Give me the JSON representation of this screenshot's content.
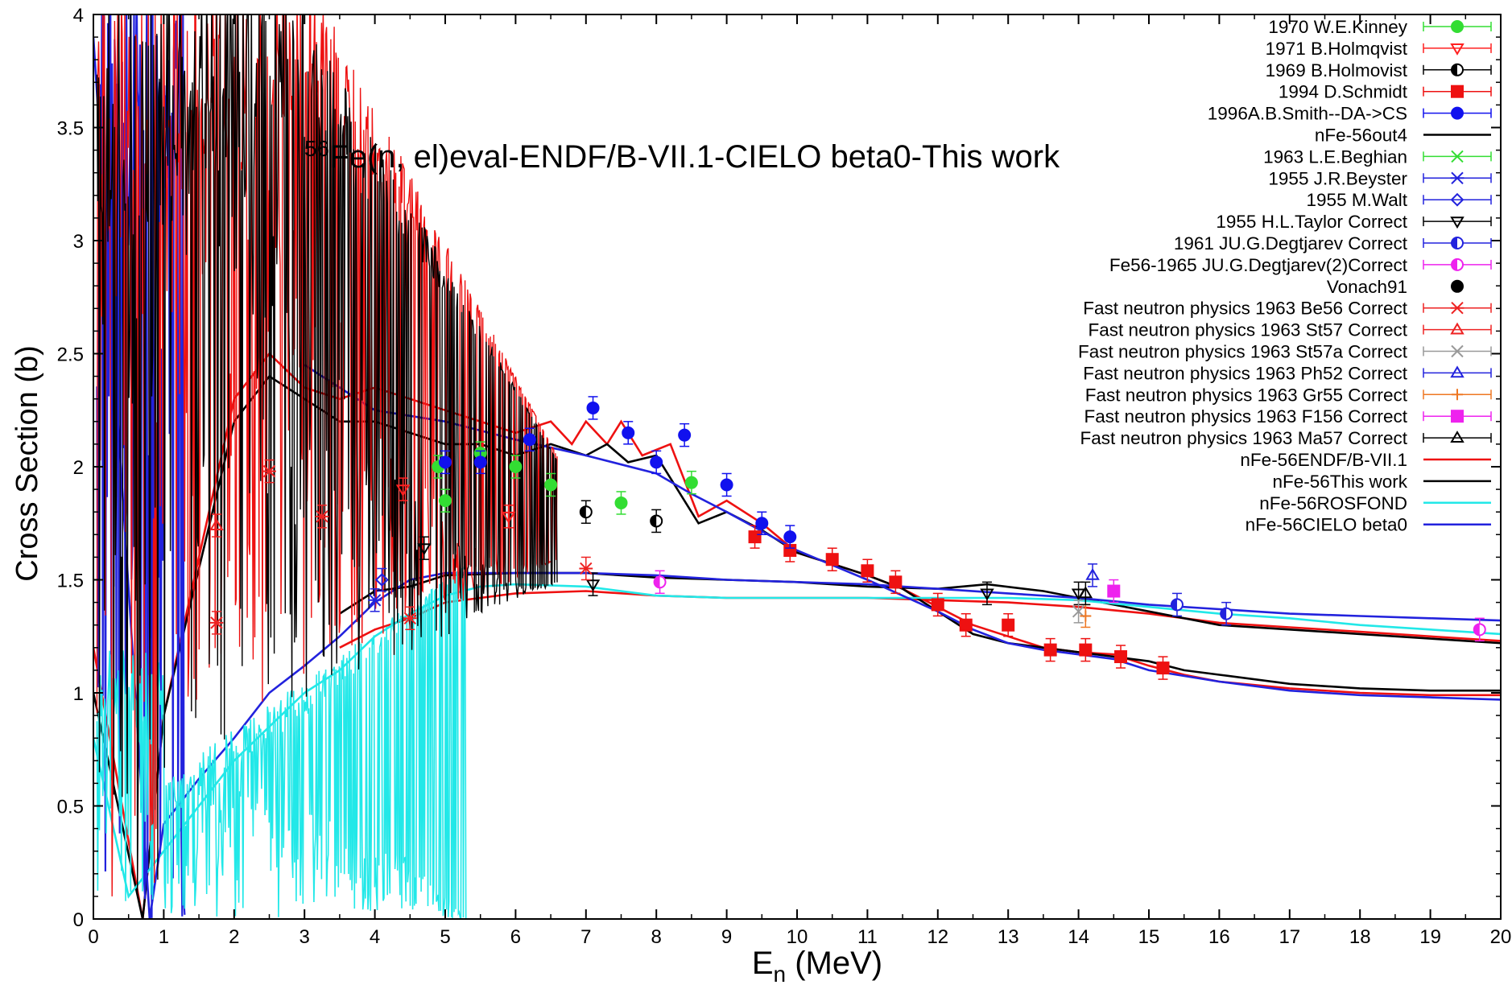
{
  "chart_data": {
    "type": "line",
    "title": "Fe(n, el)eval-ENDF/B-VII.1-CIELO beta0-This work",
    "title_superscript": "56",
    "xlabel": "E",
    "xlabel_subscript": "n",
    "xlabel_unit": " (MeV)",
    "ylabel": "Cross Section (b)",
    "xlim": [
      0,
      20
    ],
    "ylim": [
      0,
      4
    ],
    "x_ticks": [
      "0",
      "1",
      "2",
      "3",
      "4",
      "5",
      "6",
      "7",
      "8",
      "9",
      "10",
      "11",
      "12",
      "13",
      "14",
      "15",
      "16",
      "17",
      "18",
      "19",
      "20"
    ],
    "y_ticks": [
      "0",
      "0.5",
      "1",
      "1.5",
      "2",
      "2.5",
      "3",
      "3.5",
      "4"
    ],
    "grid": false,
    "legend_position": "top-right",
    "series": [
      {
        "name": "1970 W.E.Kinney",
        "kind": "points",
        "marker": "circle-filled",
        "color": "#33dd33",
        "points": [
          [
            4.9,
            2.0
          ],
          [
            5.0,
            1.85
          ],
          [
            5.5,
            2.06
          ],
          [
            6.0,
            2.0
          ],
          [
            6.5,
            1.92
          ],
          [
            7.5,
            1.84
          ],
          [
            8.5,
            1.93
          ]
        ]
      },
      {
        "name": "1971 B.Holmqvist",
        "kind": "points",
        "marker": "triangle-down-open",
        "color": "#ff2020",
        "points": [
          [
            5.9,
            1.78
          ],
          [
            4.4,
            1.9
          ]
        ]
      },
      {
        "name": "1969 B.Holmovist",
        "kind": "points",
        "marker": "circle-half",
        "color": "#000000",
        "points": [
          [
            7.0,
            1.8
          ],
          [
            8.0,
            1.76
          ]
        ]
      },
      {
        "name": "1994 D.Schmidt",
        "kind": "points",
        "marker": "square-filled",
        "color": "#ee1111",
        "points": [
          [
            9.4,
            1.69
          ],
          [
            9.9,
            1.63
          ],
          [
            10.5,
            1.59
          ],
          [
            11.0,
            1.54
          ],
          [
            11.4,
            1.49
          ],
          [
            12.0,
            1.39
          ],
          [
            12.4,
            1.3
          ],
          [
            13.0,
            1.3
          ],
          [
            13.6,
            1.19
          ],
          [
            14.1,
            1.19
          ],
          [
            14.6,
            1.16
          ],
          [
            15.2,
            1.11
          ]
        ]
      },
      {
        "name": "1996A.B.Smith--DA->CS",
        "kind": "points",
        "marker": "circle-filled",
        "color": "#1111ee",
        "points": [
          [
            5.0,
            2.02
          ],
          [
            5.5,
            2.02
          ],
          [
            6.2,
            2.12
          ],
          [
            7.1,
            2.26
          ],
          [
            7.6,
            2.15
          ],
          [
            8.0,
            2.02
          ],
          [
            8.4,
            2.14
          ],
          [
            9.0,
            1.92
          ],
          [
            9.5,
            1.75
          ],
          [
            9.9,
            1.69
          ]
        ]
      },
      {
        "name": "nFe-56out4",
        "kind": "line",
        "color": "#000000",
        "points": []
      },
      {
        "name": "1963 L.E.Beghian",
        "kind": "points",
        "marker": "x",
        "color": "#33dd33",
        "points": []
      },
      {
        "name": "1955 J.R.Beyster",
        "kind": "points",
        "marker": "star",
        "color": "#2222dd",
        "points": [
          [
            4.0,
            1.41
          ]
        ]
      },
      {
        "name": "1955 M.Walt",
        "kind": "points",
        "marker": "diamond-open",
        "color": "#2222dd",
        "points": [
          [
            4.1,
            1.5
          ]
        ]
      },
      {
        "name": "1955 H.L.Taylor Correct",
        "kind": "points",
        "marker": "triangle-down-open",
        "color": "#000000",
        "points": [
          [
            4.7,
            1.64
          ],
          [
            7.1,
            1.48
          ],
          [
            12.7,
            1.44
          ],
          [
            14.0,
            1.44
          ]
        ]
      },
      {
        "name": "1961 JU.G.Degtjarev Correct",
        "kind": "points",
        "marker": "circle-half",
        "color": "#2222dd",
        "points": [
          [
            15.4,
            1.39
          ],
          [
            16.1,
            1.35
          ]
        ]
      },
      {
        "name": "Fe56-1965 JU.G.Degtjarev(2)Correct",
        "kind": "points",
        "marker": "circle-half",
        "color": "#ee22ee",
        "points": [
          [
            8.05,
            1.49
          ],
          [
            19.7,
            1.28
          ]
        ]
      },
      {
        "name": "Vonach91",
        "kind": "points",
        "marker": "circle-filled",
        "color": "#000000",
        "points": []
      },
      {
        "name": "Fast neutron physics 1963 Be56 Correct",
        "kind": "points",
        "marker": "star",
        "color": "#ee2222",
        "points": [
          [
            1.75,
            1.31
          ],
          [
            2.5,
            1.98
          ],
          [
            3.25,
            1.78
          ],
          [
            7.0,
            1.55
          ],
          [
            4.5,
            1.33
          ]
        ]
      },
      {
        "name": "Fast neutron physics 1963 St57 Correct",
        "kind": "points",
        "marker": "triangle-up-open",
        "color": "#ee2222",
        "points": [
          [
            1.75,
            1.74
          ]
        ]
      },
      {
        "name": "Fast neutron physics 1963 St57a Correct",
        "kind": "points",
        "marker": "x",
        "color": "#999999",
        "points": [
          [
            14.0,
            1.36
          ]
        ]
      },
      {
        "name": "Fast neutron physics 1963 Ph52 Correct",
        "kind": "points",
        "marker": "triangle-up-open",
        "color": "#2222dd",
        "points": [
          [
            14.2,
            1.52
          ]
        ]
      },
      {
        "name": "Fast neutron physics 1963 Gr55 Correct",
        "kind": "points",
        "marker": "plus",
        "color": "#ee7722",
        "points": [
          [
            14.1,
            1.34
          ]
        ]
      },
      {
        "name": "Fast neutron physics 1963 F156 Correct",
        "kind": "points",
        "marker": "square-filled",
        "color": "#ee22ee",
        "points": [
          [
            14.5,
            1.45
          ]
        ]
      },
      {
        "name": "Fast neutron physics 1963 Ma57 Correct",
        "kind": "points",
        "marker": "triangle-up-open",
        "color": "#000000",
        "points": [
          [
            14.1,
            1.44
          ]
        ]
      },
      {
        "name": "nFe-56ENDF/B-VII.1",
        "kind": "line",
        "color": "#ee1111",
        "points": [
          [
            0.0,
            1.2
          ],
          [
            0.7,
            0.0
          ],
          [
            1.0,
            0.9
          ],
          [
            2.0,
            2.3
          ],
          [
            2.5,
            2.5
          ],
          [
            3.0,
            2.35
          ],
          [
            3.5,
            2.3
          ],
          [
            4.0,
            2.35
          ],
          [
            4.5,
            2.3
          ],
          [
            5.0,
            2.25
          ],
          [
            5.5,
            2.2
          ],
          [
            6.0,
            2.15
          ],
          [
            6.5,
            2.2
          ],
          [
            6.8,
            2.1
          ],
          [
            7.0,
            2.2
          ],
          [
            7.3,
            2.1
          ],
          [
            7.5,
            2.2
          ],
          [
            7.8,
            2.05
          ],
          [
            8.2,
            2.1
          ],
          [
            8.6,
            1.78
          ],
          [
            9.0,
            1.85
          ],
          [
            9.5,
            1.75
          ],
          [
            10.0,
            1.62
          ],
          [
            10.5,
            1.57
          ],
          [
            11.0,
            1.52
          ],
          [
            11.5,
            1.46
          ],
          [
            12.0,
            1.38
          ],
          [
            12.5,
            1.3
          ],
          [
            13.0,
            1.25
          ],
          [
            13.5,
            1.2
          ],
          [
            14.0,
            1.18
          ],
          [
            14.5,
            1.17
          ],
          [
            15.0,
            1.12
          ],
          [
            15.5,
            1.08
          ],
          [
            16.0,
            1.05
          ],
          [
            17.0,
            1.02
          ],
          [
            18.0,
            1.0
          ],
          [
            19.0,
            0.99
          ],
          [
            20.0,
            0.99
          ]
        ],
        "lower_branch": [
          [
            3.5,
            1.2
          ],
          [
            4.0,
            1.28
          ],
          [
            4.5,
            1.33
          ],
          [
            5.0,
            1.4
          ],
          [
            6.0,
            1.44
          ],
          [
            7.0,
            1.45
          ],
          [
            8.0,
            1.43
          ],
          [
            9.0,
            1.42
          ],
          [
            10.0,
            1.42
          ],
          [
            11.0,
            1.42
          ],
          [
            12.0,
            1.41
          ],
          [
            13.0,
            1.4
          ],
          [
            14.0,
            1.38
          ],
          [
            15.0,
            1.35
          ],
          [
            16.0,
            1.31
          ],
          [
            17.0,
            1.29
          ],
          [
            18.0,
            1.27
          ],
          [
            19.0,
            1.25
          ],
          [
            20.0,
            1.23
          ]
        ]
      },
      {
        "name": "nFe-56This work",
        "kind": "line",
        "color": "#000000",
        "points": [
          [
            0.0,
            1.0
          ],
          [
            0.7,
            0.0
          ],
          [
            1.0,
            0.9
          ],
          [
            2.0,
            2.2
          ],
          [
            2.5,
            2.4
          ],
          [
            3.0,
            2.3
          ],
          [
            3.5,
            2.2
          ],
          [
            4.0,
            2.2
          ],
          [
            4.5,
            2.15
          ],
          [
            5.0,
            2.1
          ],
          [
            5.5,
            2.1
          ],
          [
            6.0,
            2.05
          ],
          [
            6.5,
            2.1
          ],
          [
            7.0,
            2.05
          ],
          [
            7.3,
            2.1
          ],
          [
            7.6,
            2.02
          ],
          [
            8.0,
            2.05
          ],
          [
            8.6,
            1.75
          ],
          [
            9.0,
            1.8
          ],
          [
            9.5,
            1.72
          ],
          [
            10.0,
            1.62
          ],
          [
            10.5,
            1.57
          ],
          [
            11.0,
            1.52
          ],
          [
            11.5,
            1.46
          ],
          [
            12.0,
            1.36
          ],
          [
            12.5,
            1.26
          ],
          [
            13.0,
            1.22
          ],
          [
            13.5,
            1.2
          ],
          [
            14.0,
            1.18
          ],
          [
            14.5,
            1.16
          ],
          [
            15.0,
            1.14
          ],
          [
            15.5,
            1.1
          ],
          [
            16.0,
            1.08
          ],
          [
            17.0,
            1.04
          ],
          [
            18.0,
            1.02
          ],
          [
            19.0,
            1.01
          ],
          [
            20.0,
            1.01
          ]
        ],
        "lower_branch": [
          [
            3.5,
            1.35
          ],
          [
            4.0,
            1.45
          ],
          [
            4.5,
            1.47
          ],
          [
            5.0,
            1.52
          ],
          [
            6.0,
            1.53
          ],
          [
            7.0,
            1.53
          ],
          [
            8.0,
            1.51
          ],
          [
            9.0,
            1.5
          ],
          [
            10.0,
            1.49
          ],
          [
            11.0,
            1.47
          ],
          [
            12.0,
            1.46
          ],
          [
            12.7,
            1.48
          ],
          [
            13.5,
            1.45
          ],
          [
            14.0,
            1.42
          ],
          [
            15.0,
            1.36
          ],
          [
            16.0,
            1.3
          ],
          [
            17.0,
            1.28
          ],
          [
            18.0,
            1.26
          ],
          [
            19.0,
            1.24
          ],
          [
            20.0,
            1.22
          ]
        ]
      },
      {
        "name": "nFe-56ROSFOND",
        "kind": "line",
        "color": "#22e8e8",
        "points": [
          [
            0.0,
            0.8
          ],
          [
            0.5,
            0.1
          ],
          [
            1.0,
            0.3
          ],
          [
            1.5,
            0.5
          ],
          [
            2.0,
            0.7
          ],
          [
            2.5,
            0.85
          ],
          [
            3.0,
            1.0
          ],
          [
            3.5,
            1.1
          ],
          [
            4.0,
            1.25
          ],
          [
            4.5,
            1.35
          ],
          [
            5.0,
            1.43
          ],
          [
            5.5,
            1.47
          ],
          [
            6.0,
            1.48
          ],
          [
            7.0,
            1.47
          ],
          [
            8.0,
            1.43
          ],
          [
            9.0,
            1.42
          ],
          [
            10.0,
            1.42
          ],
          [
            11.0,
            1.42
          ],
          [
            12.0,
            1.42
          ],
          [
            13.0,
            1.42
          ],
          [
            14.0,
            1.41
          ],
          [
            15.0,
            1.38
          ],
          [
            16.0,
            1.35
          ],
          [
            17.0,
            1.33
          ],
          [
            18.0,
            1.3
          ],
          [
            19.0,
            1.28
          ],
          [
            20.0,
            1.26
          ]
        ]
      },
      {
        "name": "nFe-56CIELO beta0",
        "kind": "line",
        "color": "#2222dd",
        "points": [
          [
            0.0,
            3.9
          ],
          [
            0.8,
            0.0
          ],
          [
            1.0,
            0.42
          ],
          [
            1.5,
            0.62
          ],
          [
            2.0,
            0.8
          ],
          [
            2.5,
            1.0
          ],
          [
            3.0,
            1.12
          ],
          [
            3.5,
            1.25
          ],
          [
            4.0,
            1.4
          ],
          [
            4.5,
            1.5
          ],
          [
            5.0,
            1.53
          ],
          [
            6.0,
            1.53
          ],
          [
            7.0,
            1.53
          ],
          [
            8.0,
            1.52
          ],
          [
            9.0,
            1.5
          ],
          [
            10.0,
            1.49
          ],
          [
            11.0,
            1.48
          ],
          [
            12.0,
            1.46
          ],
          [
            13.0,
            1.44
          ],
          [
            14.0,
            1.42
          ],
          [
            15.0,
            1.39
          ],
          [
            16.0,
            1.37
          ],
          [
            17.0,
            1.35
          ],
          [
            18.0,
            1.34
          ],
          [
            19.0,
            1.33
          ],
          [
            20.0,
            1.32
          ]
        ],
        "upper_branch": [
          [
            3.0,
            2.45
          ],
          [
            3.5,
            2.35
          ],
          [
            4.0,
            2.25
          ],
          [
            5.0,
            2.2
          ],
          [
            6.0,
            2.12
          ],
          [
            7.0,
            2.05
          ],
          [
            8.0,
            1.97
          ],
          [
            8.5,
            1.88
          ],
          [
            9.0,
            1.8
          ],
          [
            10.0,
            1.63
          ],
          [
            11.0,
            1.5
          ],
          [
            11.5,
            1.43
          ],
          [
            12.0,
            1.36
          ],
          [
            12.5,
            1.28
          ],
          [
            13.0,
            1.22
          ],
          [
            13.5,
            1.19
          ],
          [
            14.0,
            1.17
          ],
          [
            14.5,
            1.15
          ],
          [
            15.0,
            1.1
          ],
          [
            16.0,
            1.05
          ],
          [
            17.0,
            1.01
          ],
          [
            18.0,
            0.99
          ],
          [
            19.0,
            0.98
          ],
          [
            20.0,
            0.97
          ]
        ]
      }
    ]
  }
}
